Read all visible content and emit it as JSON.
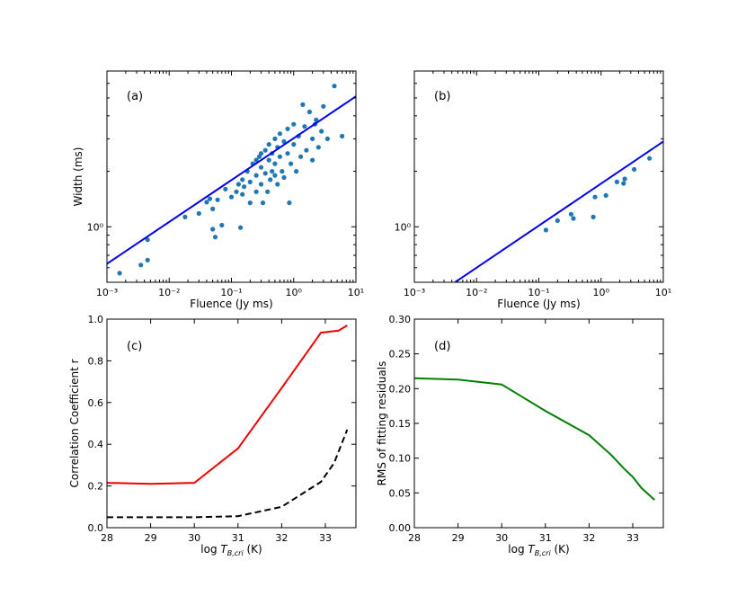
{
  "chart_data": [
    {
      "panel": "(a)",
      "type": "scatter",
      "xlabel": "Fluence (Jy ms)",
      "ylabel": "Width (ms)",
      "xscale": "log",
      "yscale": "log",
      "xlim": [
        0.001,
        10
      ],
      "ylim": [
        0.5,
        7
      ],
      "x_ticks": [
        "10⁻³",
        "10⁻²",
        "10⁻¹",
        "10⁰",
        "10¹"
      ],
      "x_tick_values": [
        0.001,
        0.01,
        0.1,
        1,
        10
      ],
      "y_ticks": [
        "10⁰"
      ],
      "y_tick_values": [
        1
      ],
      "point_color": "#1f77b4",
      "points": [
        [
          0.0016,
          0.56
        ],
        [
          0.0035,
          0.62
        ],
        [
          0.0045,
          0.66
        ],
        [
          0.0045,
          0.85
        ],
        [
          0.018,
          1.13
        ],
        [
          0.03,
          1.18
        ],
        [
          0.04,
          1.36
        ],
        [
          0.045,
          1.42
        ],
        [
          0.05,
          1.25
        ],
        [
          0.05,
          0.97
        ],
        [
          0.055,
          0.88
        ],
        [
          0.06,
          1.4
        ],
        [
          0.07,
          1.02
        ],
        [
          0.08,
          1.6
        ],
        [
          0.1,
          1.45
        ],
        [
          0.12,
          1.55
        ],
        [
          0.13,
          1.7
        ],
        [
          0.14,
          0.99
        ],
        [
          0.15,
          1.8
        ],
        [
          0.16,
          1.65
        ],
        [
          0.18,
          2.0
        ],
        [
          0.2,
          1.75
        ],
        [
          0.2,
          1.35
        ],
        [
          0.22,
          2.2
        ],
        [
          0.25,
          1.9
        ],
        [
          0.25,
          1.55
        ],
        [
          0.28,
          2.4
        ],
        [
          0.3,
          2.1
        ],
        [
          0.3,
          1.7
        ],
        [
          0.32,
          1.35
        ],
        [
          0.35,
          2.6
        ],
        [
          0.35,
          1.95
        ],
        [
          0.38,
          1.55
        ],
        [
          0.4,
          2.3
        ],
        [
          0.4,
          2.8
        ],
        [
          0.42,
          1.8
        ],
        [
          0.45,
          2.5
        ],
        [
          0.45,
          2.0
        ],
        [
          0.5,
          3.0
        ],
        [
          0.5,
          2.2
        ],
        [
          0.55,
          1.7
        ],
        [
          0.55,
          2.7
        ],
        [
          0.6,
          2.4
        ],
        [
          0.6,
          3.2
        ],
        [
          0.65,
          2.0
        ],
        [
          0.7,
          2.9
        ],
        [
          0.7,
          1.85
        ],
        [
          0.8,
          2.5
        ],
        [
          0.8,
          3.4
        ],
        [
          0.85,
          1.35
        ],
        [
          0.9,
          2.2
        ],
        [
          1.0,
          2.8
        ],
        [
          1.0,
          3.6
        ],
        [
          1.1,
          2.0
        ],
        [
          1.2,
          3.1
        ],
        [
          1.3,
          2.4
        ],
        [
          1.5,
          3.5
        ],
        [
          1.6,
          2.6
        ],
        [
          1.8,
          4.2
        ],
        [
          2.0,
          3.0
        ],
        [
          2.0,
          2.3
        ],
        [
          2.3,
          3.8
        ],
        [
          2.5,
          2.7
        ],
        [
          2.8,
          3.3
        ],
        [
          3.0,
          4.5
        ],
        [
          3.5,
          3.0
        ],
        [
          4.5,
          5.8
        ],
        [
          6.0,
          3.1
        ],
        [
          0.3,
          2.5
        ],
        [
          0.5,
          1.9
        ],
        [
          0.25,
          2.3
        ],
        [
          0.15,
          1.5
        ],
        [
          1.4,
          4.6
        ],
        [
          2.2,
          3.6
        ]
      ],
      "fit_line": {
        "color": "#0000ee",
        "x": [
          0.001,
          10
        ],
        "y": [
          0.63,
          5.1
        ]
      }
    },
    {
      "panel": "(b)",
      "type": "scatter",
      "xlabel": "Fluence (Jy ms)",
      "ylabel": "",
      "xscale": "log",
      "yscale": "log",
      "xlim": [
        0.001,
        10
      ],
      "ylim": [
        0.5,
        7
      ],
      "x_ticks": [
        "10⁻³",
        "10⁻²",
        "10⁻¹",
        "10⁰",
        "10¹"
      ],
      "x_tick_values": [
        0.001,
        0.01,
        0.1,
        1,
        10
      ],
      "y_ticks": [
        "10⁰"
      ],
      "y_tick_values": [
        1
      ],
      "point_color": "#1f77b4",
      "points": [
        [
          0.13,
          0.96
        ],
        [
          0.2,
          1.08
        ],
        [
          0.33,
          1.17
        ],
        [
          0.36,
          1.11
        ],
        [
          0.75,
          1.13
        ],
        [
          0.8,
          1.45
        ],
        [
          1.2,
          1.48
        ],
        [
          1.8,
          1.75
        ],
        [
          2.3,
          1.72
        ],
        [
          2.4,
          1.82
        ],
        [
          3.4,
          2.05
        ],
        [
          6.0,
          2.35
        ]
      ],
      "fit_line": {
        "color": "#0000ee",
        "x": [
          0.0045,
          10
        ],
        "y": [
          0.5,
          2.9
        ]
      }
    },
    {
      "panel": "(c)",
      "type": "line",
      "xlabel": "log T_B,cri (K)",
      "ylabel": "Correlation Coefficient r",
      "xlim": [
        28,
        33.7
      ],
      "ylim": [
        0,
        1.0
      ],
      "x_ticks": [
        "28",
        "29",
        "30",
        "31",
        "32",
        "33"
      ],
      "x_tick_values": [
        28,
        29,
        30,
        31,
        32,
        33
      ],
      "y_ticks": [
        "0.0",
        "0.2",
        "0.4",
        "0.6",
        "0.8",
        "1.0"
      ],
      "y_tick_values": [
        0,
        0.2,
        0.4,
        0.6,
        0.8,
        1.0
      ],
      "series": [
        {
          "name": "red",
          "color": "#ee0000",
          "dash": "solid",
          "x": [
            28,
            29,
            30,
            31,
            32,
            32.9,
            33.3,
            33.5
          ],
          "y": [
            0.215,
            0.21,
            0.215,
            0.38,
            0.67,
            0.935,
            0.945,
            0.97
          ]
        },
        {
          "name": "black",
          "color": "#000000",
          "dash": "dashed",
          "x": [
            28,
            29,
            30,
            31,
            32,
            32.9,
            33.2,
            33.5
          ],
          "y": [
            0.05,
            0.05,
            0.05,
            0.055,
            0.1,
            0.22,
            0.31,
            0.47
          ]
        }
      ]
    },
    {
      "panel": "(d)",
      "type": "line",
      "xlabel": "log T_B,cri (K)",
      "ylabel": "RMS of fitting residuals",
      "xlim": [
        28,
        33.7
      ],
      "ylim": [
        0,
        0.3
      ],
      "x_ticks": [
        "28",
        "29",
        "30",
        "31",
        "32",
        "33"
      ],
      "x_tick_values": [
        28,
        29,
        30,
        31,
        32,
        33
      ],
      "y_ticks": [
        "0.00",
        "0.05",
        "0.10",
        "0.15",
        "0.20",
        "0.25",
        "0.30"
      ],
      "y_tick_values": [
        0,
        0.05,
        0.1,
        0.15,
        0.2,
        0.25,
        0.3
      ],
      "series": [
        {
          "name": "green",
          "color": "#008000",
          "dash": "solid",
          "x": [
            28,
            29,
            30,
            31,
            32,
            32.5,
            32.8,
            33.0,
            33.2,
            33.5
          ],
          "y": [
            0.215,
            0.213,
            0.206,
            0.168,
            0.133,
            0.105,
            0.085,
            0.073,
            0.057,
            0.04
          ]
        }
      ]
    }
  ]
}
